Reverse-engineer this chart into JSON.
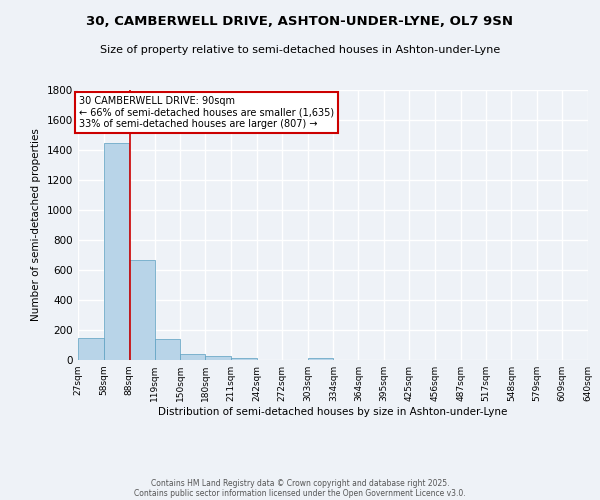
{
  "title": "30, CAMBERWELL DRIVE, ASHTON-UNDER-LYNE, OL7 9SN",
  "subtitle": "Size of property relative to semi-detached houses in Ashton-under-Lyne",
  "xlabel": "Distribution of semi-detached houses by size in Ashton-under-Lyne",
  "ylabel": "Number of semi-detached properties",
  "bin_labels": [
    "27sqm",
    "58sqm",
    "88sqm",
    "119sqm",
    "150sqm",
    "180sqm",
    "211sqm",
    "242sqm",
    "272sqm",
    "303sqm",
    "334sqm",
    "364sqm",
    "395sqm",
    "425sqm",
    "456sqm",
    "487sqm",
    "517sqm",
    "548sqm",
    "579sqm",
    "609sqm",
    "640sqm"
  ],
  "bin_edges": [
    27,
    58,
    88,
    119,
    150,
    180,
    211,
    242,
    272,
    303,
    334,
    364,
    395,
    425,
    456,
    487,
    517,
    548,
    579,
    609,
    640
  ],
  "bar_heights": [
    150,
    1450,
    670,
    140,
    40,
    30,
    15,
    0,
    0,
    15,
    0,
    0,
    0,
    0,
    0,
    0,
    0,
    0,
    0,
    0
  ],
  "bar_color": "#b8d4e8",
  "bar_edge_color": "#5a9fc0",
  "property_value": 90,
  "vline_color": "#cc0000",
  "annotation_line1": "30 CAMBERWELL DRIVE: 90sqm",
  "annotation_line2": "← 66% of semi-detached houses are smaller (1,635)",
  "annotation_line3": "33% of semi-detached houses are larger (807) →",
  "annotation_box_color": "#cc0000",
  "ylim": [
    0,
    1800
  ],
  "yticks": [
    0,
    200,
    400,
    600,
    800,
    1000,
    1200,
    1400,
    1600,
    1800
  ],
  "background_color": "#eef2f7",
  "grid_color": "#ffffff",
  "footer_line1": "Contains HM Land Registry data © Crown copyright and database right 2025.",
  "footer_line2": "Contains public sector information licensed under the Open Government Licence v3.0."
}
